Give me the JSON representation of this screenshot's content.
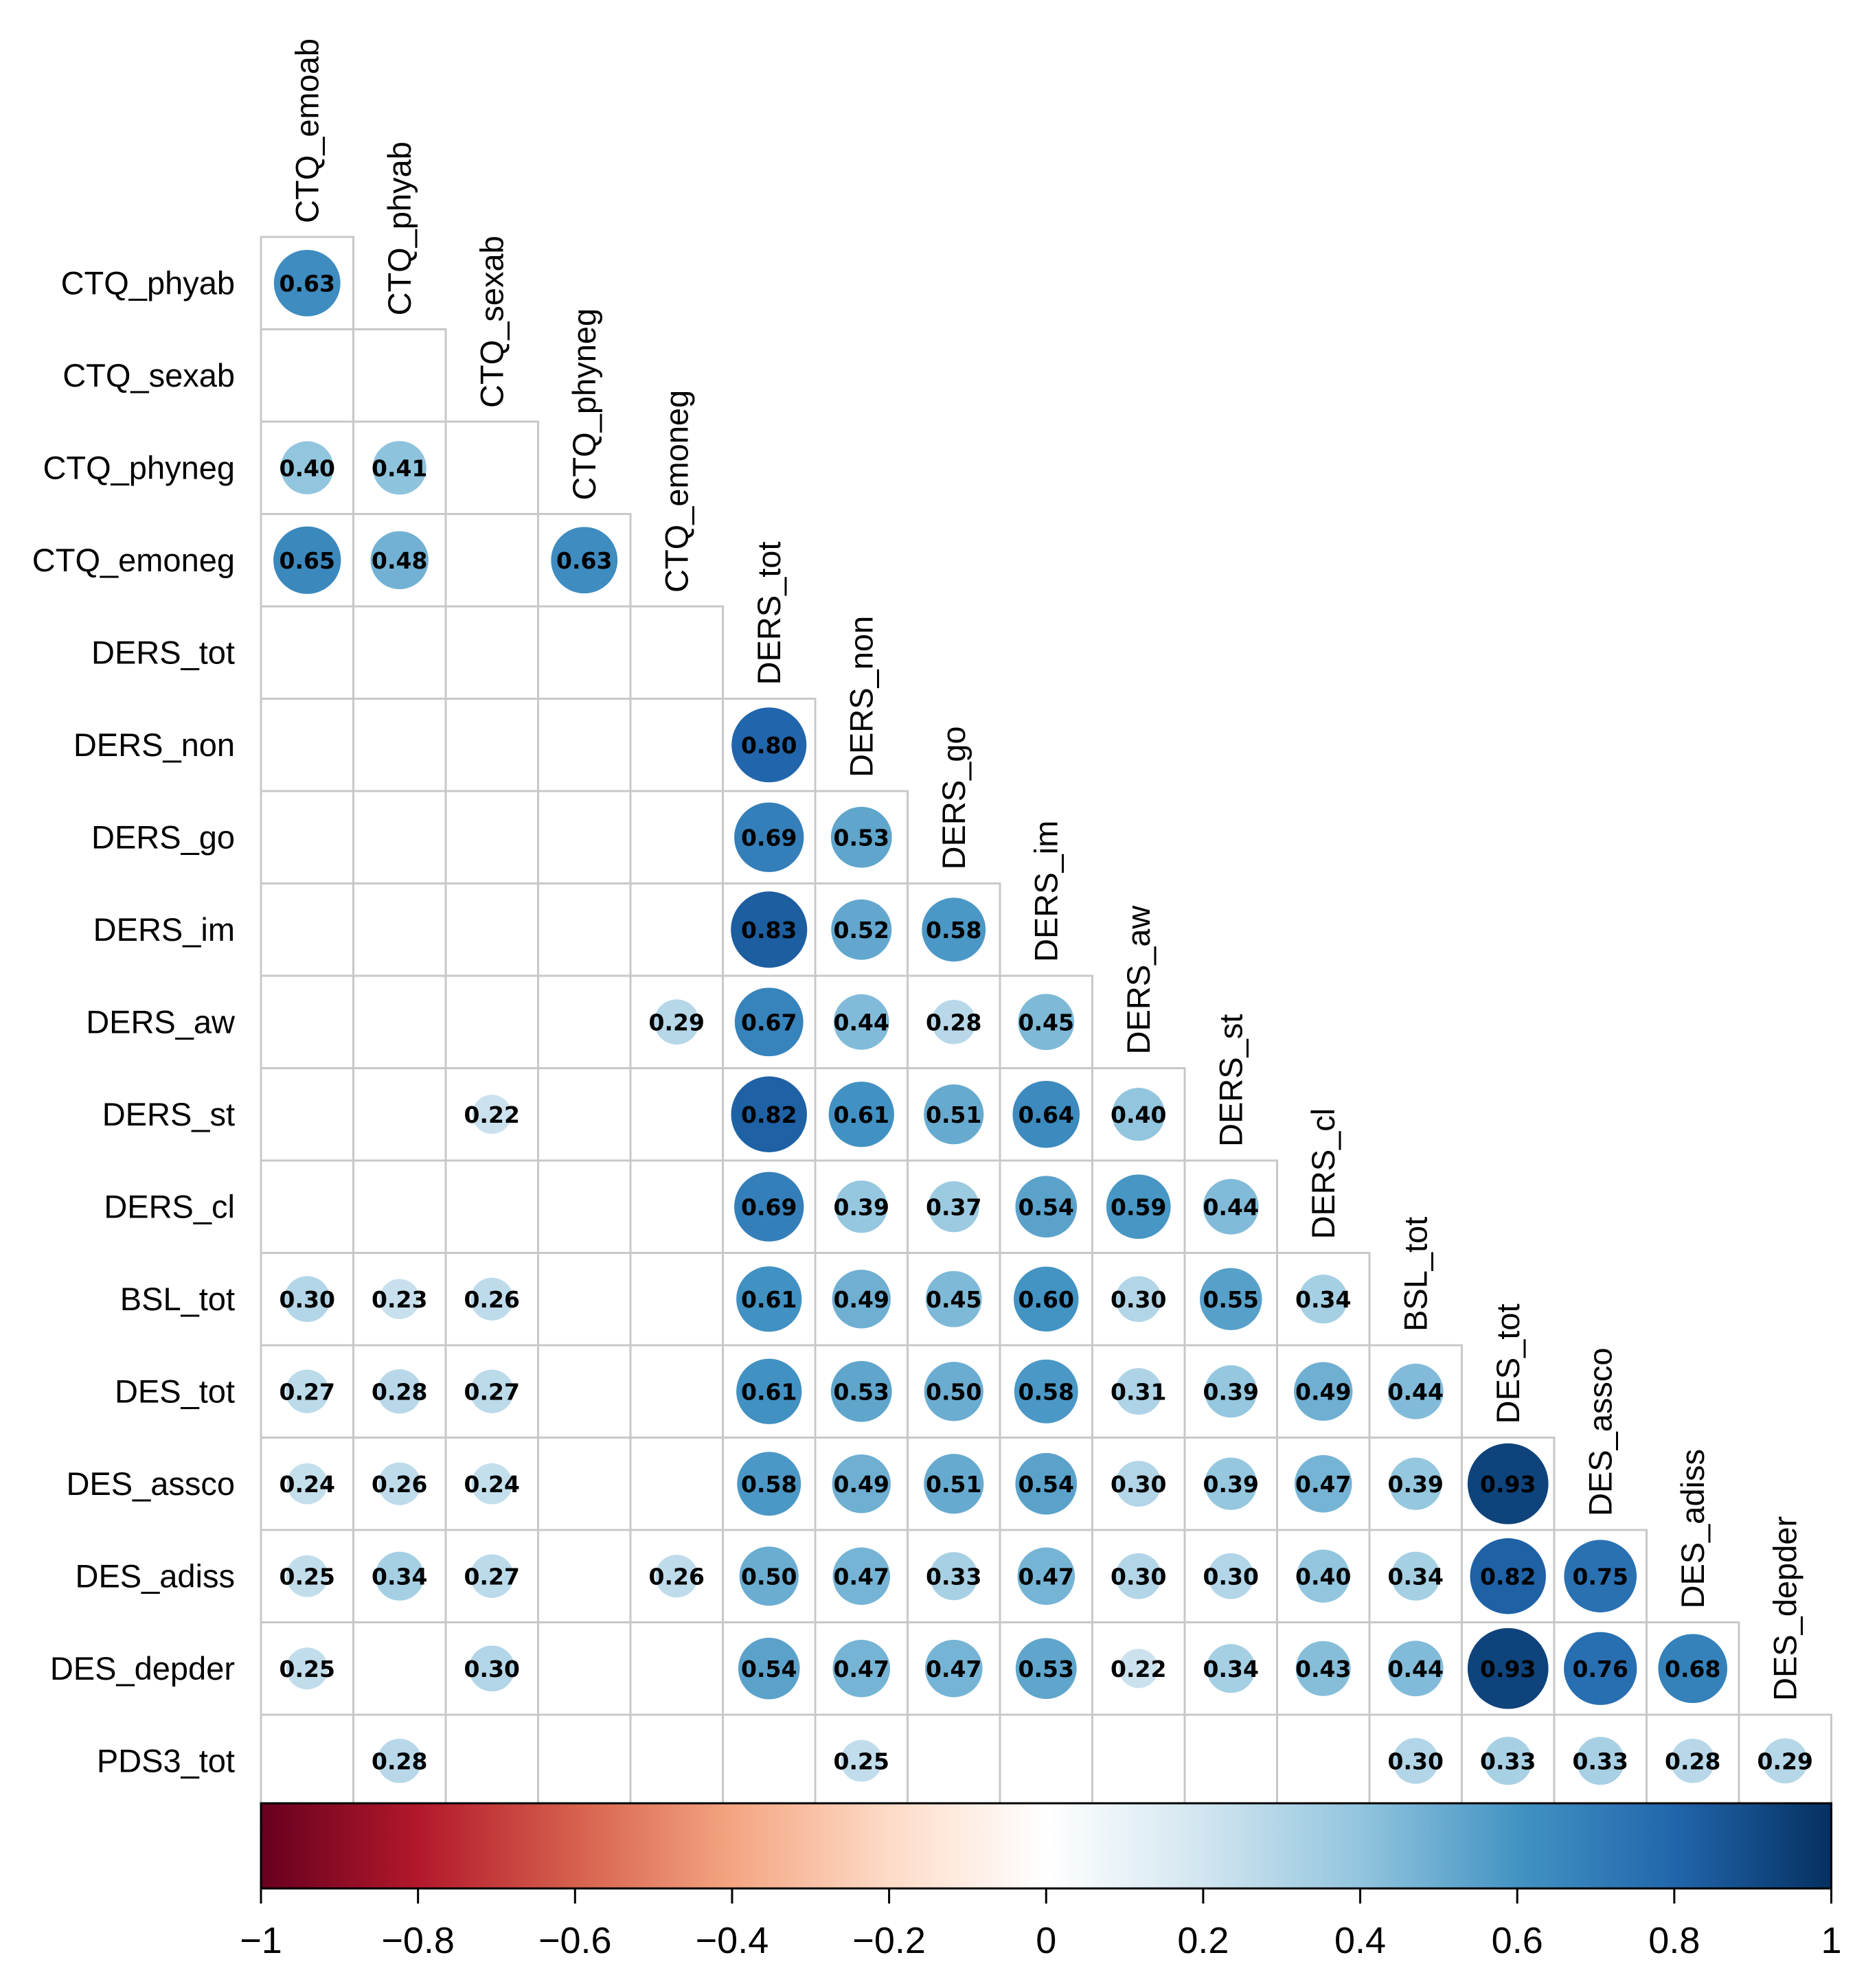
{
  "chart_data": {
    "type": "heatmap",
    "subtype": "correlation-matrix-lower",
    "title": "",
    "variables": [
      "CTQ_emoab",
      "CTQ_phyab",
      "CTQ_sexab",
      "CTQ_phyneg",
      "CTQ_emoneg",
      "DERS_tot",
      "DERS_non",
      "DERS_go",
      "DERS_im",
      "DERS_aw",
      "DERS_st",
      "DERS_cl",
      "BSL_tot",
      "DES_tot",
      "DES_assco",
      "DES_adiss",
      "DES_depder",
      "PDS3_tot"
    ],
    "correlations": [
      {
        "row": "CTQ_phyab",
        "col": "CTQ_emoab",
        "value": 0.63,
        "label": "0.63"
      },
      {
        "row": "CTQ_phyneg",
        "col": "CTQ_emoab",
        "value": 0.4,
        "label": "0.40"
      },
      {
        "row": "CTQ_phyneg",
        "col": "CTQ_phyab",
        "value": 0.41,
        "label": "0.41"
      },
      {
        "row": "CTQ_emoneg",
        "col": "CTQ_emoab",
        "value": 0.65,
        "label": "0.65"
      },
      {
        "row": "CTQ_emoneg",
        "col": "CTQ_phyab",
        "value": 0.48,
        "label": "0.48"
      },
      {
        "row": "CTQ_emoneg",
        "col": "CTQ_phyneg",
        "value": 0.63,
        "label": "0.63"
      },
      {
        "row": "DERS_non",
        "col": "DERS_tot",
        "value": 0.8,
        "label": "0.80"
      },
      {
        "row": "DERS_go",
        "col": "DERS_tot",
        "value": 0.69,
        "label": "0.69"
      },
      {
        "row": "DERS_go",
        "col": "DERS_non",
        "value": 0.53,
        "label": "0.53"
      },
      {
        "row": "DERS_im",
        "col": "DERS_tot",
        "value": 0.83,
        "label": "0.83"
      },
      {
        "row": "DERS_im",
        "col": "DERS_non",
        "value": 0.52,
        "label": "0.52"
      },
      {
        "row": "DERS_im",
        "col": "DERS_go",
        "value": 0.58,
        "label": "0.58"
      },
      {
        "row": "DERS_aw",
        "col": "CTQ_emoneg",
        "value": 0.29,
        "label": "0.29"
      },
      {
        "row": "DERS_aw",
        "col": "DERS_tot",
        "value": 0.67,
        "label": "0.67"
      },
      {
        "row": "DERS_aw",
        "col": "DERS_non",
        "value": 0.44,
        "label": "0.44"
      },
      {
        "row": "DERS_aw",
        "col": "DERS_go",
        "value": 0.28,
        "label": "0.28"
      },
      {
        "row": "DERS_aw",
        "col": "DERS_im",
        "value": 0.45,
        "label": "0.45"
      },
      {
        "row": "DERS_st",
        "col": "CTQ_sexab",
        "value": 0.22,
        "label": "0.22"
      },
      {
        "row": "DERS_st",
        "col": "DERS_tot",
        "value": 0.82,
        "label": "0.82"
      },
      {
        "row": "DERS_st",
        "col": "DERS_non",
        "value": 0.61,
        "label": "0.61"
      },
      {
        "row": "DERS_st",
        "col": "DERS_go",
        "value": 0.51,
        "label": "0.51"
      },
      {
        "row": "DERS_st",
        "col": "DERS_im",
        "value": 0.64,
        "label": "0.64"
      },
      {
        "row": "DERS_st",
        "col": "DERS_aw",
        "value": 0.4,
        "label": "0.40"
      },
      {
        "row": "DERS_cl",
        "col": "DERS_tot",
        "value": 0.69,
        "label": "0.69"
      },
      {
        "row": "DERS_cl",
        "col": "DERS_non",
        "value": 0.39,
        "label": "0.39"
      },
      {
        "row": "DERS_cl",
        "col": "DERS_go",
        "value": 0.37,
        "label": "0.37"
      },
      {
        "row": "DERS_cl",
        "col": "DERS_im",
        "value": 0.54,
        "label": "0.54"
      },
      {
        "row": "DERS_cl",
        "col": "DERS_aw",
        "value": 0.59,
        "label": "0.59"
      },
      {
        "row": "DERS_cl",
        "col": "DERS_st",
        "value": 0.44,
        "label": "0.44"
      },
      {
        "row": "BSL_tot",
        "col": "CTQ_emoab",
        "value": 0.3,
        "label": "0.30"
      },
      {
        "row": "BSL_tot",
        "col": "CTQ_phyab",
        "value": 0.23,
        "label": "0.23"
      },
      {
        "row": "BSL_tot",
        "col": "CTQ_sexab",
        "value": 0.26,
        "label": "0.26"
      },
      {
        "row": "BSL_tot",
        "col": "DERS_tot",
        "value": 0.61,
        "label": "0.61"
      },
      {
        "row": "BSL_tot",
        "col": "DERS_non",
        "value": 0.49,
        "label": "0.49"
      },
      {
        "row": "BSL_tot",
        "col": "DERS_go",
        "value": 0.45,
        "label": "0.45"
      },
      {
        "row": "BSL_tot",
        "col": "DERS_im",
        "value": 0.6,
        "label": "0.60"
      },
      {
        "row": "BSL_tot",
        "col": "DERS_aw",
        "value": 0.3,
        "label": "0.30"
      },
      {
        "row": "BSL_tot",
        "col": "DERS_st",
        "value": 0.55,
        "label": "0.55"
      },
      {
        "row": "BSL_tot",
        "col": "DERS_cl",
        "value": 0.34,
        "label": "0.34"
      },
      {
        "row": "DES_tot",
        "col": "CTQ_emoab",
        "value": 0.27,
        "label": "0.27"
      },
      {
        "row": "DES_tot",
        "col": "CTQ_phyab",
        "value": 0.28,
        "label": "0.28"
      },
      {
        "row": "DES_tot",
        "col": "CTQ_sexab",
        "value": 0.27,
        "label": "0.27"
      },
      {
        "row": "DES_tot",
        "col": "DERS_tot",
        "value": 0.61,
        "label": "0.61"
      },
      {
        "row": "DES_tot",
        "col": "DERS_non",
        "value": 0.53,
        "label": "0.53"
      },
      {
        "row": "DES_tot",
        "col": "DERS_go",
        "value": 0.5,
        "label": "0.50"
      },
      {
        "row": "DES_tot",
        "col": "DERS_im",
        "value": 0.58,
        "label": "0.58"
      },
      {
        "row": "DES_tot",
        "col": "DERS_aw",
        "value": 0.31,
        "label": "0.31"
      },
      {
        "row": "DES_tot",
        "col": "DERS_st",
        "value": 0.39,
        "label": "0.39"
      },
      {
        "row": "DES_tot",
        "col": "DERS_cl",
        "value": 0.49,
        "label": "0.49"
      },
      {
        "row": "DES_tot",
        "col": "BSL_tot",
        "value": 0.44,
        "label": "0.44"
      },
      {
        "row": "DES_assco",
        "col": "CTQ_emoab",
        "value": 0.24,
        "label": "0.24"
      },
      {
        "row": "DES_assco",
        "col": "CTQ_phyab",
        "value": 0.26,
        "label": "0.26"
      },
      {
        "row": "DES_assco",
        "col": "CTQ_sexab",
        "value": 0.24,
        "label": "0.24"
      },
      {
        "row": "DES_assco",
        "col": "DERS_tot",
        "value": 0.58,
        "label": "0.58"
      },
      {
        "row": "DES_assco",
        "col": "DERS_non",
        "value": 0.49,
        "label": "0.49"
      },
      {
        "row": "DES_assco",
        "col": "DERS_go",
        "value": 0.51,
        "label": "0.51"
      },
      {
        "row": "DES_assco",
        "col": "DERS_im",
        "value": 0.54,
        "label": "0.54"
      },
      {
        "row": "DES_assco",
        "col": "DERS_aw",
        "value": 0.3,
        "label": "0.30"
      },
      {
        "row": "DES_assco",
        "col": "DERS_st",
        "value": 0.39,
        "label": "0.39"
      },
      {
        "row": "DES_assco",
        "col": "DERS_cl",
        "value": 0.47,
        "label": "0.47"
      },
      {
        "row": "DES_assco",
        "col": "BSL_tot",
        "value": 0.39,
        "label": "0.39"
      },
      {
        "row": "DES_assco",
        "col": "DES_tot",
        "value": 0.93,
        "label": "0.93"
      },
      {
        "row": "DES_adiss",
        "col": "CTQ_emoab",
        "value": 0.25,
        "label": "0.25"
      },
      {
        "row": "DES_adiss",
        "col": "CTQ_phyab",
        "value": 0.34,
        "label": "0.34"
      },
      {
        "row": "DES_adiss",
        "col": "CTQ_sexab",
        "value": 0.27,
        "label": "0.27"
      },
      {
        "row": "DES_adiss",
        "col": "CTQ_emoneg",
        "value": 0.26,
        "label": "0.26"
      },
      {
        "row": "DES_adiss",
        "col": "DERS_tot",
        "value": 0.5,
        "label": "0.50"
      },
      {
        "row": "DES_adiss",
        "col": "DERS_non",
        "value": 0.47,
        "label": "0.47"
      },
      {
        "row": "DES_adiss",
        "col": "DERS_go",
        "value": 0.33,
        "label": "0.33"
      },
      {
        "row": "DES_adiss",
        "col": "DERS_im",
        "value": 0.47,
        "label": "0.47"
      },
      {
        "row": "DES_adiss",
        "col": "DERS_aw",
        "value": 0.3,
        "label": "0.30"
      },
      {
        "row": "DES_adiss",
        "col": "DERS_st",
        "value": 0.3,
        "label": "0.30"
      },
      {
        "row": "DES_adiss",
        "col": "DERS_cl",
        "value": 0.4,
        "label": "0.40"
      },
      {
        "row": "DES_adiss",
        "col": "BSL_tot",
        "value": 0.34,
        "label": "0.34"
      },
      {
        "row": "DES_adiss",
        "col": "DES_tot",
        "value": 0.82,
        "label": "0.82"
      },
      {
        "row": "DES_adiss",
        "col": "DES_assco",
        "value": 0.75,
        "label": "0.75"
      },
      {
        "row": "DES_depder",
        "col": "CTQ_emoab",
        "value": 0.25,
        "label": "0.25"
      },
      {
        "row": "DES_depder",
        "col": "CTQ_sexab",
        "value": 0.3,
        "label": "0.30"
      },
      {
        "row": "DES_depder",
        "col": "DERS_tot",
        "value": 0.54,
        "label": "0.54"
      },
      {
        "row": "DES_depder",
        "col": "DERS_non",
        "value": 0.47,
        "label": "0.47"
      },
      {
        "row": "DES_depder",
        "col": "DERS_go",
        "value": 0.47,
        "label": "0.47"
      },
      {
        "row": "DES_depder",
        "col": "DERS_im",
        "value": 0.53,
        "label": "0.53"
      },
      {
        "row": "DES_depder",
        "col": "DERS_aw",
        "value": 0.22,
        "label": "0.22"
      },
      {
        "row": "DES_depder",
        "col": "DERS_st",
        "value": 0.34,
        "label": "0.34"
      },
      {
        "row": "DES_depder",
        "col": "DERS_cl",
        "value": 0.43,
        "label": "0.43"
      },
      {
        "row": "DES_depder",
        "col": "BSL_tot",
        "value": 0.44,
        "label": "0.44"
      },
      {
        "row": "DES_depder",
        "col": "DES_tot",
        "value": 0.93,
        "label": "0.93"
      },
      {
        "row": "DES_depder",
        "col": "DES_assco",
        "value": 0.76,
        "label": "0.76"
      },
      {
        "row": "DES_depder",
        "col": "DES_adiss",
        "value": 0.68,
        "label": "0.68"
      },
      {
        "row": "PDS3_tot",
        "col": "CTQ_phyab",
        "value": 0.28,
        "label": "0.28"
      },
      {
        "row": "PDS3_tot",
        "col": "DERS_non",
        "value": 0.25,
        "label": "0.25"
      },
      {
        "row": "PDS3_tot",
        "col": "BSL_tot",
        "value": 0.3,
        "label": "0.30"
      },
      {
        "row": "PDS3_tot",
        "col": "DES_tot",
        "value": 0.33,
        "label": "0.33"
      },
      {
        "row": "PDS3_tot",
        "col": "DES_assco",
        "value": 0.33,
        "label": "0.33"
      },
      {
        "row": "PDS3_tot",
        "col": "DES_adiss",
        "value": 0.28,
        "label": "0.28"
      },
      {
        "row": "PDS3_tot",
        "col": "DES_depder",
        "value": 0.29,
        "label": "0.29"
      }
    ],
    "colorbar": {
      "range": [
        -1,
        1
      ],
      "ticks": [
        -1,
        -0.8,
        -0.6,
        -0.4,
        -0.2,
        0,
        0.2,
        0.4,
        0.6,
        0.8,
        1
      ],
      "tick_labels": [
        "−1",
        "−0.8",
        "−0.6",
        "−0.4",
        "−0.2",
        "0",
        "0.2",
        "0.4",
        "0.6",
        "0.8",
        "1"
      ],
      "colors": [
        "#67001F",
        "#B2182B",
        "#D6604D",
        "#F4A582",
        "#FDDBC7",
        "#FFFFFF",
        "#D1E5F0",
        "#92C5DE",
        "#4393C3",
        "#2166AC",
        "#053061"
      ]
    },
    "grid_color": "#C8C8C8"
  }
}
